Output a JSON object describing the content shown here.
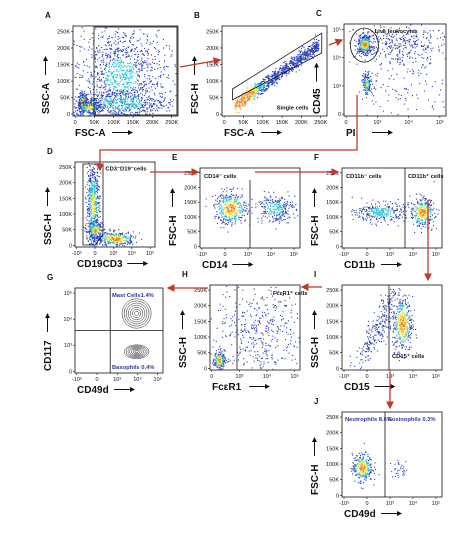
{
  "chart_data": [
    {
      "id": "A",
      "type": "scatter",
      "panel_label": "A",
      "xlabel": "FSC-A",
      "ylabel": "SSC-A",
      "xticks": [
        "0",
        "50K",
        "100K",
        "150K",
        "200K",
        "250K"
      ],
      "yticks": [
        "0",
        "50K",
        "100K",
        "150K",
        "200K",
        "250K"
      ],
      "gate": {
        "type": "rect",
        "x": [
          50000,
          262000
        ],
        "y": [
          0,
          262000
        ]
      }
    },
    {
      "id": "B",
      "type": "scatter",
      "panel_label": "B",
      "xlabel": "FSC-A",
      "ylabel": "FSC-H",
      "xticks": [
        "0",
        "50K",
        "100K",
        "150K",
        "200K",
        "250K"
      ],
      "yticks": [
        "0",
        "50K",
        "100K",
        "150K",
        "200K",
        "250K"
      ],
      "gate_label": "Single cells"
    },
    {
      "id": "C",
      "type": "scatter",
      "panel_label": "C",
      "xlabel": "PI",
      "ylabel": "CD45",
      "xticks": [
        "0",
        "10³",
        "10⁴",
        "10⁵"
      ],
      "yticks": [
        "0",
        "10³",
        "10⁴",
        "10⁵"
      ],
      "gate_label": "Live leukocytes"
    },
    {
      "id": "D",
      "type": "scatter",
      "panel_label": "D",
      "xlabel": "CD19CD3",
      "ylabel": "SSC-H",
      "xticks": [
        "-10³",
        "0",
        "10³",
        "10⁴",
        "10⁵"
      ],
      "yticks": [
        "0",
        "50K",
        "100K",
        "150K",
        "200K",
        "250K"
      ],
      "gate_label": "CD3⁻D19⁻cells"
    },
    {
      "id": "E",
      "type": "scatter",
      "panel_label": "E",
      "xlabel": "CD14",
      "ylabel": "FSC-H",
      "xticks": [
        "-10³",
        "0",
        "10³",
        "10⁴",
        "10⁵"
      ],
      "yticks": [
        "0",
        "50K",
        "100K",
        "150K",
        "200K",
        "250K"
      ],
      "gate_label": "CD14⁻ cells"
    },
    {
      "id": "F",
      "type": "scatter",
      "panel_label": "F",
      "xlabel": "CD11b",
      "ylabel": "FSC-H",
      "xticks": [
        "-10³",
        "0",
        "10³",
        "10⁴",
        "10⁵"
      ],
      "yticks": [
        "0",
        "50K",
        "100K",
        "150K",
        "200K",
        "250K"
      ],
      "gate_labels": [
        "CD11b⁻ cells",
        "CD11b⁺ cells"
      ]
    },
    {
      "id": "G",
      "type": "contour",
      "panel_label": "G",
      "xlabel": "CD49d",
      "ylabel": "CD117",
      "xticks": [
        "-10³",
        "0",
        "10³",
        "10⁴",
        "10⁵"
      ],
      "yticks": [
        "0",
        "10³",
        "10⁴",
        "10⁵"
      ],
      "quadrants": [
        {
          "name": "Mast Cells",
          "percent": 1.4,
          "text": "Mast Cells1.4%"
        },
        {
          "name": "Basophils",
          "percent": 0.4,
          "text": "Basophils 0.4%"
        }
      ]
    },
    {
      "id": "H",
      "type": "scatter",
      "panel_label": "H",
      "xlabel": "FcεR1",
      "ylabel": "SSC-H",
      "xticks": [
        "0",
        "10³",
        "10⁴",
        "10⁵"
      ],
      "yticks": [
        "0",
        "50K",
        "100K",
        "150K",
        "200K",
        "250K"
      ],
      "gate_label": "FcεR1⁺ cells"
    },
    {
      "id": "I",
      "type": "scatter",
      "panel_label": "I",
      "xlabel": "CD15",
      "ylabel": "SSC-H",
      "xticks": [
        "-10³",
        "0",
        "10³",
        "10⁴",
        "10⁵"
      ],
      "yticks": [
        "0",
        "50K",
        "100K",
        "150K",
        "200K",
        "250K"
      ],
      "gate_label": "CD15⁺ cells"
    },
    {
      "id": "J",
      "type": "scatter",
      "panel_label": "J",
      "xlabel": "CD49d",
      "ylabel": "FSC-H",
      "xticks": [
        "-10³",
        "0",
        "10³",
        "10⁴",
        "10⁵"
      ],
      "yticks": [
        "0",
        "50K",
        "100K",
        "150K",
        "200K",
        "250K"
      ],
      "quadrants": [
        {
          "name": "Neutrophils",
          "percent": 8.6,
          "text": "Neutrophils 8.6%"
        },
        {
          "name": "Eosinophils",
          "percent": 0.3,
          "text": "Eosinophils 0.3%"
        }
      ]
    }
  ],
  "colors": {
    "gate_arrow": "#c0392b",
    "dot_low": "#2a3fb8",
    "dot_mid": "#27c4d6",
    "dot_high": "#f0e23a",
    "dot_peak": "#f08a1c"
  }
}
